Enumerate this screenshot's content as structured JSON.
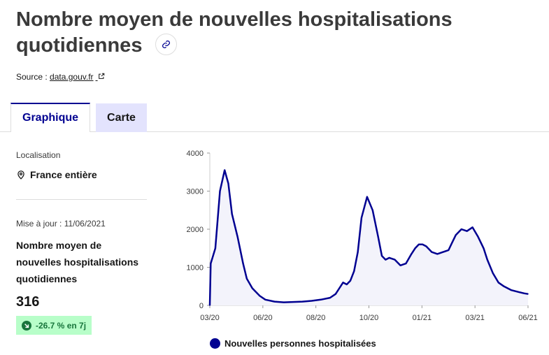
{
  "header": {
    "title": "Nombre moyen de nouvelles hospitalisations quotidiennes",
    "link_icon": "link-icon"
  },
  "source": {
    "prefix": "Source :",
    "link_text": "data.gouv.fr",
    "icon": "external-link-icon"
  },
  "tabs": [
    {
      "label": "Graphique",
      "active": true
    },
    {
      "label": "Carte",
      "active": false
    }
  ],
  "sidebar": {
    "location_label": "Localisation",
    "location_value": "France entière",
    "location_icon": "map-pin-icon",
    "update_text": "Mise à jour : 11/06/2021",
    "indicator_name": "Nombre moyen de nouvelles hospitalisations quotidiennes",
    "indicator_value": "316",
    "evolution": "-26.7 % en 7j",
    "evolution_icon": "arrow-down-right-icon"
  },
  "colors": {
    "accent": "#000091",
    "tab_inactive_bg": "#e3e3fd",
    "badge_bg": "#b8fec9",
    "badge_text": "#18753c",
    "area_fill": "#f3f3fb"
  },
  "chart_data": {
    "type": "area",
    "x_ticks": [
      "03/20",
      "06/20",
      "08/20",
      "10/20",
      "01/21",
      "03/21",
      "06/21"
    ],
    "y_ticks": [
      "0",
      "1000",
      "2000",
      "3000",
      "4000"
    ],
    "ylim": [
      0,
      4000
    ],
    "series": [
      {
        "name": "Nouvelles personnes hospitalisées",
        "x_month_index": [
          0,
          0.05,
          0.3,
          0.55,
          0.8,
          1.0,
          1.2,
          1.5,
          1.8,
          2.0,
          2.3,
          2.7,
          3.0,
          3.5,
          4.0,
          4.5,
          5.0,
          5.5,
          6.0,
          6.5,
          6.8,
          7.0,
          7.2,
          7.4,
          7.6,
          7.8,
          8.0,
          8.2,
          8.5,
          8.8,
          9.1,
          9.3,
          9.5,
          9.7,
          10.0,
          10.3,
          10.6,
          10.9,
          11.1,
          11.3,
          11.5,
          11.7,
          12.0,
          12.3,
          12.6,
          12.9,
          13.1,
          13.3,
          13.6,
          13.9,
          14.2,
          14.5,
          14.8,
          15.0,
          15.3,
          15.6,
          15.9,
          16.3,
          16.7,
          17.0,
          17.2
        ],
        "values": [
          0,
          1100,
          1500,
          3000,
          3550,
          3200,
          2400,
          1800,
          1100,
          700,
          450,
          250,
          150,
          100,
          80,
          90,
          100,
          120,
          150,
          200,
          300,
          450,
          600,
          550,
          650,
          900,
          1400,
          2300,
          2850,
          2500,
          1800,
          1300,
          1200,
          1250,
          1200,
          1050,
          1100,
          1350,
          1500,
          1600,
          1600,
          1550,
          1400,
          1350,
          1400,
          1450,
          1650,
          1850,
          2000,
          1950,
          2050,
          1800,
          1500,
          1200,
          850,
          600,
          500,
          400,
          350,
          316,
          300
        ]
      }
    ]
  },
  "legend": {
    "label": "Nouvelles personnes hospitalisées"
  }
}
